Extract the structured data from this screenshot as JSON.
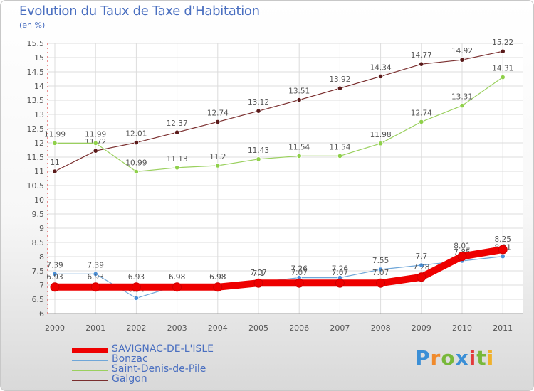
{
  "header": {
    "title": "Evolution du Taux de Taxe d'Habitation",
    "subtitle": "(en %)"
  },
  "logo": {
    "text": "Proxiti",
    "letters": [
      {
        "ch": "P",
        "color": "#3b8fd6"
      },
      {
        "ch": "r",
        "color": "#f08a2c"
      },
      {
        "ch": "o",
        "color": "#78b83a"
      },
      {
        "ch": "x",
        "color": "#3b8fd6"
      },
      {
        "ch": "i",
        "color": "#e23b3b"
      },
      {
        "ch": "t",
        "color": "#78b83a"
      },
      {
        "ch": "i",
        "color": "#f0b12c"
      }
    ]
  },
  "chart_data": {
    "type": "line",
    "title": "Evolution du Taux de Taxe d'Habitation",
    "subtitle": "(en %)",
    "xlabel": "",
    "ylabel": "",
    "x": [
      "2000",
      "2001",
      "2002",
      "2003",
      "2004",
      "2005",
      "2006",
      "2007",
      "2008",
      "2009",
      "2010",
      "2011"
    ],
    "ylim": [
      6,
      15.5
    ],
    "yticks": [
      "6",
      "6.5",
      "7",
      "7.5",
      "8",
      "8.5",
      "9",
      "9.5",
      "10",
      "10.5",
      "11",
      "11.5",
      "12",
      "12.5",
      "13",
      "13.5",
      "14",
      "14.5",
      "15",
      "15.5"
    ],
    "grid": true,
    "legend_position": "bottom-left",
    "series": [
      {
        "name": "SAVIGNAC-DE-L'ISLE",
        "color": "#ee0000",
        "values": [
          6.93,
          6.93,
          6.93,
          6.93,
          6.93,
          7.07,
          7.07,
          7.07,
          7.07,
          7.28,
          8.01,
          8.25
        ],
        "labels": [
          "6.93",
          "6.93",
          "6.93",
          "6.93",
          "6.93",
          "7.07",
          "7.07",
          "7.07",
          "7.07",
          "7.28",
          "8.01",
          "8.25"
        ]
      },
      {
        "name": "Bonzac",
        "color": "#6fa6d8",
        "values": [
          7.39,
          7.39,
          6.54,
          6.98,
          6.98,
          7.1,
          7.26,
          7.26,
          7.55,
          7.7,
          7.85,
          8.01
        ],
        "labels": [
          "7.39",
          "7.39",
          "6.54",
          "6.98",
          "6.98",
          "7.1",
          "7.26",
          "7.26",
          "7.55",
          "7.7",
          "7.85",
          "8.01"
        ]
      },
      {
        "name": "Saint-Denis-de-Pile",
        "color": "#9ad05e",
        "values": [
          11.99,
          11.99,
          10.99,
          11.13,
          11.2,
          11.43,
          11.54,
          11.54,
          11.98,
          12.74,
          13.31,
          14.31
        ],
        "labels": [
          "11.99",
          "11.99",
          "10.99",
          "11.13",
          "11.2",
          "11.43",
          "11.54",
          "11.54",
          "11.98",
          "12.74",
          "13.31",
          "14.31"
        ]
      },
      {
        "name": "Galgon",
        "color": "#7a2e2e",
        "values": [
          11,
          11.72,
          12.01,
          12.37,
          12.74,
          13.12,
          13.51,
          13.92,
          14.34,
          14.77,
          14.92,
          15.22
        ],
        "labels": [
          "11",
          "11.72",
          "12.01",
          "12.37",
          "12.74",
          "13.12",
          "13.51",
          "13.92",
          "14.34",
          "14.77",
          "14.92",
          "15.22"
        ]
      }
    ]
  }
}
